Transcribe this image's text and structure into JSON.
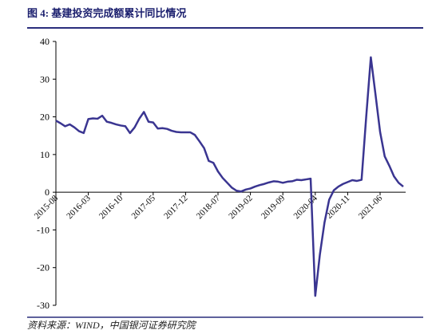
{
  "chart_data": {
    "type": "line",
    "title": "图 4:  基建投资完成额累计同比情况",
    "source": "资料来源：WIND，中国银河证券研究院",
    "categories": [
      "2015-08",
      null,
      null,
      null,
      null,
      null,
      null,
      "2016-03",
      null,
      null,
      null,
      null,
      null,
      null,
      "2016-10",
      null,
      null,
      null,
      null,
      null,
      null,
      "2017-05",
      null,
      null,
      null,
      null,
      null,
      null,
      "2017-12",
      null,
      null,
      null,
      null,
      null,
      null,
      "2018-07",
      null,
      null,
      null,
      null,
      null,
      null,
      "2019-02",
      null,
      null,
      null,
      null,
      null,
      null,
      "2019-09",
      null,
      null,
      null,
      null,
      null,
      null,
      "2020-04",
      null,
      null,
      null,
      null,
      null,
      null,
      "2020-11",
      null,
      null,
      null,
      null,
      null,
      null,
      "2021-06",
      null,
      null,
      null,
      null,
      null
    ],
    "series": [
      {
        "color": "#3a3591",
        "values": [
          19.0,
          18.3,
          17.5,
          18.0,
          17.2,
          16.2,
          15.7,
          19.4,
          19.6,
          19.5,
          20.3,
          18.7,
          18.4,
          18.0,
          17.7,
          17.5,
          15.7,
          17.2,
          19.5,
          21.3,
          18.7,
          18.5,
          16.9,
          17.0,
          16.8,
          16.3,
          16.0,
          15.9,
          15.9,
          15.9,
          15.2,
          13.5,
          11.7,
          8.3,
          7.8,
          5.5,
          3.8,
          2.5,
          1.2,
          0.4,
          0.2,
          0.7,
          1.0,
          1.5,
          1.9,
          2.2,
          2.6,
          2.9,
          2.8,
          2.5,
          2.8,
          2.9,
          3.3,
          3.2,
          3.4,
          3.6,
          -27.5,
          -16.5,
          -8.0,
          -2.0,
          0.5,
          1.5,
          2.2,
          2.7,
          3.2,
          3.0,
          3.3,
          20.0,
          35.8,
          26.0,
          16.0,
          9.5,
          7.0,
          4.2,
          2.5,
          1.5
        ]
      }
    ],
    "ylim": [
      -30,
      40
    ],
    "yticks": [
      -30,
      -20,
      -10,
      0,
      10,
      20,
      30,
      40
    ]
  }
}
